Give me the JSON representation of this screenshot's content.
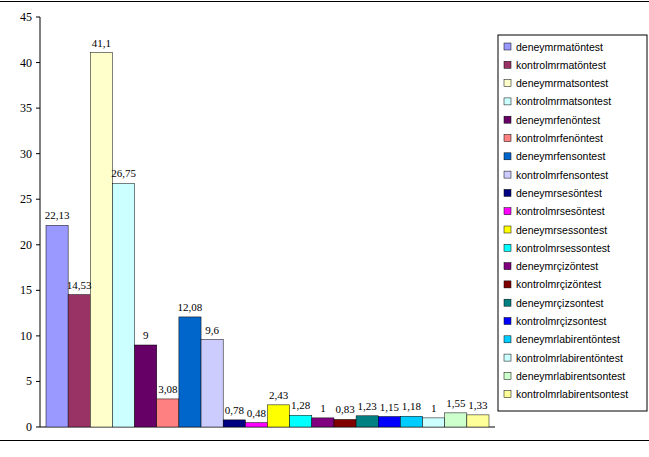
{
  "chart_data": {
    "type": "bar",
    "categories": [
      null
    ],
    "series": [
      {
        "name": "deneymrmatöntest",
        "color": "#9999ff",
        "values": [
          22.13
        ],
        "value_labels": [
          "22,13"
        ]
      },
      {
        "name": "kontrolmrmatöntest",
        "color": "#993366",
        "values": [
          14.53
        ],
        "value_labels": [
          "14,53"
        ]
      },
      {
        "name": "deneymrmatsontest",
        "color": "#ffffcc",
        "values": [
          41.1
        ],
        "value_labels": [
          "41,1"
        ]
      },
      {
        "name": "kontrolmrmatsontest",
        "color": "#ccffff",
        "values": [
          26.75
        ],
        "value_labels": [
          "26,75"
        ]
      },
      {
        "name": "deneymrfenöntest",
        "color": "#660066",
        "values": [
          9
        ],
        "value_labels": [
          "9"
        ]
      },
      {
        "name": "kontrolmrfenöntest",
        "color": "#ff8080",
        "values": [
          3.08
        ],
        "value_labels": [
          "3,08"
        ]
      },
      {
        "name": "deneymrfensontest",
        "color": "#0066cc",
        "values": [
          12.08
        ],
        "value_labels": [
          "12,08"
        ]
      },
      {
        "name": "kontrolmrfensontest",
        "color": "#ccccff",
        "values": [
          9.6
        ],
        "value_labels": [
          "9,6"
        ]
      },
      {
        "name": "deneymrsesöntest",
        "color": "#000080",
        "values": [
          0.78
        ],
        "value_labels": [
          "0,78"
        ]
      },
      {
        "name": "kontrolmrsesöntest",
        "color": "#ff00ff",
        "values": [
          0.48
        ],
        "value_labels": [
          "0,48"
        ]
      },
      {
        "name": "deneymrsessontest",
        "color": "#ffff00",
        "values": [
          2.43
        ],
        "value_labels": [
          "2,43"
        ]
      },
      {
        "name": "kontrolmrsessontest",
        "color": "#00ffff",
        "values": [
          1.28
        ],
        "value_labels": [
          "1,28"
        ]
      },
      {
        "name": "deneymrçizöntest",
        "color": "#800080",
        "values": [
          1
        ],
        "value_labels": [
          "1"
        ]
      },
      {
        "name": "kontrolmrçizöntest",
        "color": "#800000",
        "values": [
          0.83
        ],
        "value_labels": [
          "0,83"
        ]
      },
      {
        "name": "deneymrçizsontest",
        "color": "#008080",
        "values": [
          1.23
        ],
        "value_labels": [
          "1,23"
        ]
      },
      {
        "name": "kontrolmrçizsontest",
        "color": "#0000ff",
        "values": [
          1.15
        ],
        "value_labels": [
          "1,15"
        ]
      },
      {
        "name": "deneymrlabirentöntest",
        "color": "#00ccff",
        "values": [
          1.18
        ],
        "value_labels": [
          "1,18"
        ]
      },
      {
        "name": "kontrolmrlabirentöntest",
        "color": "#ccffff",
        "values": [
          1
        ],
        "value_labels": [
          "1"
        ]
      },
      {
        "name": "deneymrlabirentsontest",
        "color": "#ccffcc",
        "values": [
          1.55
        ],
        "value_labels": [
          "1,55"
        ]
      },
      {
        "name": "kontrolmrlabirentsontest",
        "color": "#ffff99",
        "values": [
          1.33
        ],
        "value_labels": [
          "1,33"
        ]
      }
    ],
    "ylim": [
      0,
      45
    ],
    "yticks": [
      0,
      5,
      10,
      15,
      20,
      25,
      30,
      35,
      40,
      45
    ],
    "grid": false,
    "legend": "right",
    "data_labels": true,
    "tick_labels": "y"
  }
}
